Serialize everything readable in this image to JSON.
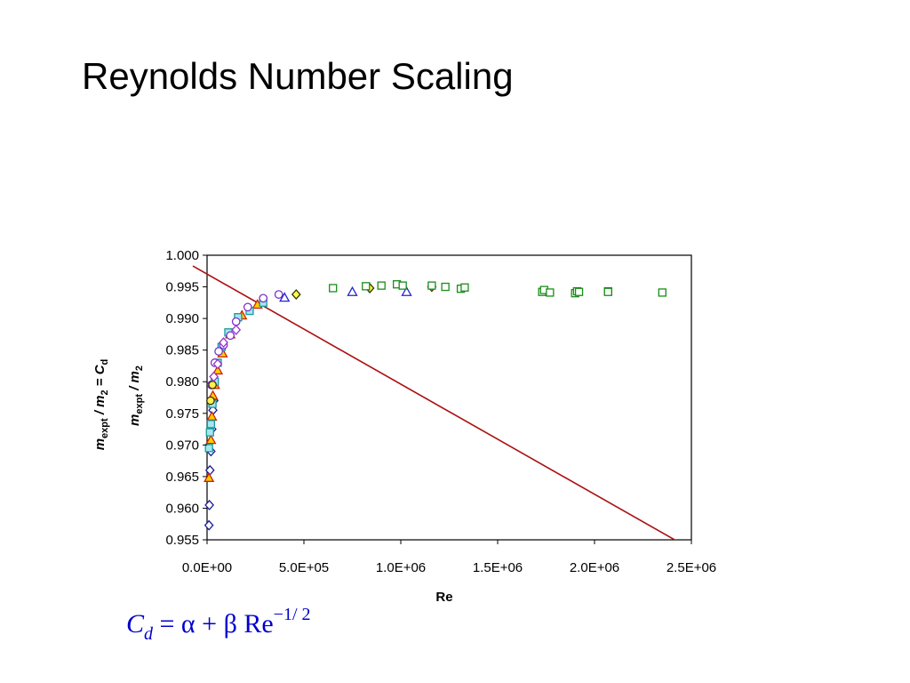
{
  "slide": {
    "title": "Reynolds Number Scaling",
    "formula": {
      "cd_symbol": "C",
      "cd_sub": "d",
      "rhs": "= α + β Re",
      "exponent": "−1/ 2"
    }
  },
  "chart_data": {
    "type": "scatter",
    "xlabel": "Re",
    "ylabel": "m_expt / m_2",
    "ylabel_overlay": "m_expt / m_2 = C_d",
    "xlim": [
      0,
      2500000
    ],
    "ylim": [
      0.955,
      1.0
    ],
    "x_ticks": [
      "0.0E+00",
      "5.0E+05",
      "1.0E+06",
      "1.5E+06",
      "2.0E+06",
      "2.5E+06"
    ],
    "x_tick_values": [
      0,
      500000,
      1000000,
      1500000,
      2000000,
      2500000
    ],
    "y_ticks": [
      "1.000",
      "0.995",
      "0.990",
      "0.985",
      "0.980",
      "0.975",
      "0.970",
      "0.965",
      "0.960",
      "0.955"
    ],
    "y_tick_values": [
      1.0,
      0.995,
      0.99,
      0.985,
      0.98,
      0.975,
      0.97,
      0.965,
      0.96,
      0.955
    ],
    "grid": false,
    "series": [
      {
        "marker": "diamond",
        "color": "#1a1a9a",
        "fill": "#ffffff",
        "x": [
          10000,
          12000,
          15000,
          20000,
          25000,
          30000,
          35000
        ],
        "y": [
          0.9573,
          0.9605,
          0.966,
          0.969,
          0.9725,
          0.9755,
          0.977
        ]
      },
      {
        "marker": "triangle",
        "color": "#cc2200",
        "fill": "#ffcc00",
        "x": [
          10000,
          20000,
          25000,
          30000,
          40000,
          55000,
          80000,
          120000,
          180000,
          260000
        ],
        "y": [
          0.9648,
          0.9708,
          0.9745,
          0.9778,
          0.9795,
          0.9818,
          0.9845,
          0.9875,
          0.9905,
          0.9922
        ]
      },
      {
        "marker": "square",
        "color": "#1a9a9a",
        "fill": "#a6e6f0",
        "x": [
          10000,
          15000,
          20000,
          28000,
          40000,
          55000,
          75000,
          110000,
          160000,
          220000,
          290000
        ],
        "y": [
          0.9695,
          0.972,
          0.9733,
          0.9765,
          0.98,
          0.983,
          0.9855,
          0.9878,
          0.9902,
          0.9912,
          0.9925
        ]
      },
      {
        "marker": "circle",
        "color": "#7733cc",
        "fill": "#ffffff",
        "x": [
          22000,
          40000,
          60000,
          85000,
          120000,
          150000,
          210000,
          290000,
          370000
        ],
        "y": [
          0.9795,
          0.983,
          0.9848,
          0.9858,
          0.9873,
          0.9895,
          0.9918,
          0.9932,
          0.9938
        ]
      },
      {
        "marker": "circle",
        "color": "#333300",
        "fill": "#ffee55",
        "x": [
          18000,
          28000
        ],
        "y": [
          0.977,
          0.9795
        ]
      },
      {
        "marker": "diamond",
        "color": "#9933cc",
        "fill": "#ffffff",
        "x": [
          35000,
          55000,
          85000,
          150000
        ],
        "y": [
          0.9808,
          0.9828,
          0.9862,
          0.9882
        ]
      },
      {
        "marker": "triangle",
        "color": "#2222cc",
        "fill": "#ffffff",
        "x": [
          400000,
          750000,
          1030000
        ],
        "y": [
          0.9933,
          0.9942,
          0.9942
        ]
      },
      {
        "marker": "diamond",
        "color": "#333300",
        "fill": "#ffff44",
        "x": [
          460000,
          840000,
          1160000
        ],
        "y": [
          0.9938,
          0.9948,
          0.995
        ]
      },
      {
        "marker": "square",
        "color": "#1a8c1a",
        "fill": "#ffffff",
        "x": [
          650000,
          820000,
          900000,
          980000,
          1010000,
          1160000,
          1230000,
          1310000,
          1330000,
          1730000,
          1740000,
          1770000,
          1900000,
          1910000,
          1920000,
          2070000,
          2070000,
          2350000
        ],
        "y": [
          0.9948,
          0.9951,
          0.9952,
          0.9954,
          0.9952,
          0.9952,
          0.995,
          0.9947,
          0.9949,
          0.9942,
          0.9945,
          0.9941,
          0.994,
          0.9943,
          0.9942,
          0.9943,
          0.9942,
          0.9941
        ]
      }
    ],
    "trend_line": {
      "color": "#aa1111",
      "x": [
        0,
        2500000
      ],
      "y": [
        0.9972,
        0.9535
      ]
    }
  }
}
